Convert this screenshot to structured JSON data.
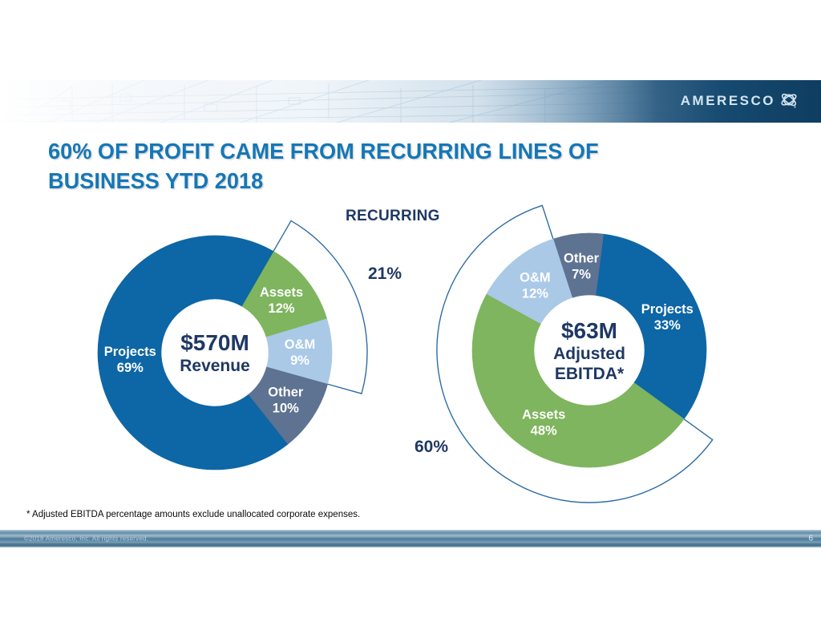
{
  "header": {
    "logo_text": "AMERESCO"
  },
  "slide": {
    "title_line1": "60% OF PROFIT CAME FROM RECURRING LINES OF",
    "title_line2": "BUSINESS YTD 2018",
    "footnote": "* Adjusted EBITDA percentage amounts exclude unallocated corporate expenses."
  },
  "annotations": {
    "recurring": "RECURRING"
  },
  "footer": {
    "copyright": "©2018 Ameresco, Inc. All rights reserved.",
    "page_number": "6"
  },
  "colors": {
    "projects": "#0d66a5",
    "assets": "#7eb55e",
    "om": "#a9c9e7",
    "other": "#5e7291",
    "navy_text": "#1f3864",
    "title_blue": "#1577b7",
    "highlight_stroke": "#2e6da4",
    "header_navy": "#0e3d60",
    "footer_base": "#6d95ae",
    "slice_label": "#ffffff"
  },
  "chart_data": [
    {
      "type": "pie",
      "variant": "donut",
      "title": "Revenue YTD 2018",
      "center_lines": [
        "$570M",
        "Revenue"
      ],
      "start_angle_deg": 30,
      "segments": [
        {
          "label": "Assets",
          "pct": 12,
          "color_key": "assets"
        },
        {
          "label": "O&M",
          "pct": 9,
          "color_key": "om"
        },
        {
          "label": "Other",
          "pct": 10,
          "color_key": "other"
        },
        {
          "label": "Projects",
          "pct": 69,
          "color_key": "projects"
        }
      ],
      "highlight": {
        "label": "21%",
        "meaning": "RECURRING",
        "covers_segment_indexes": [
          0,
          1
        ]
      }
    },
    {
      "type": "pie",
      "variant": "donut",
      "title": "Adjusted EBITDA YTD 2018",
      "center_lines": [
        "$63M",
        "Adjusted",
        "EBITDA*"
      ],
      "start_angle_deg": -18,
      "segments": [
        {
          "label": "Other",
          "pct": 7,
          "color_key": "other"
        },
        {
          "label": "Projects",
          "pct": 33,
          "color_key": "projects"
        },
        {
          "label": "Assets",
          "pct": 48,
          "color_key": "assets"
        },
        {
          "label": "O&M",
          "pct": 12,
          "color_key": "om"
        }
      ],
      "highlight": {
        "label": "60%",
        "meaning": "RECURRING",
        "covers_segment_indexes": [
          2,
          3
        ]
      }
    }
  ]
}
